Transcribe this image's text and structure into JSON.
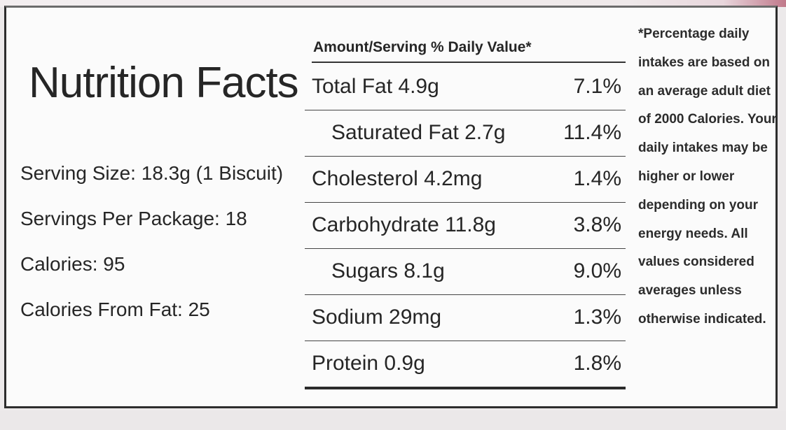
{
  "label": {
    "title": "Nutrition Facts",
    "serving_size": "Serving Size: 18.3g (1 Biscuit)",
    "servings_per_package": "Servings Per Package: 18",
    "calories": "Calories: 95",
    "calories_from_fat": "Calories From Fat: 25",
    "table_header": "Amount/Serving % Daily Value*",
    "rows": [
      {
        "label": "Total Fat 4.9g",
        "pct": "7.1%"
      },
      {
        "label": "Saturated Fat 2.7g",
        "pct": "11.4%"
      },
      {
        "label": "Cholesterol 4.2mg",
        "pct": "1.4%"
      },
      {
        "label": "Carbohydrate 11.8g",
        "pct": "3.8%"
      },
      {
        "label": "Sugars 8.1g",
        "pct": "9.0%"
      },
      {
        "label": "Sodium 29mg",
        "pct": "1.3%"
      },
      {
        "label": "Protein 0.9g",
        "pct": "1.8%"
      }
    ],
    "footnote_lines": [
      "*Percentage daily",
      "intakes are based on",
      "an average adult diet",
      "of 2000 Calories. Your",
      "daily intakes may be",
      "higher or lower",
      "depending on your",
      "energy needs. All",
      "values considered",
      "averages unless",
      "otherwise indicated."
    ]
  }
}
